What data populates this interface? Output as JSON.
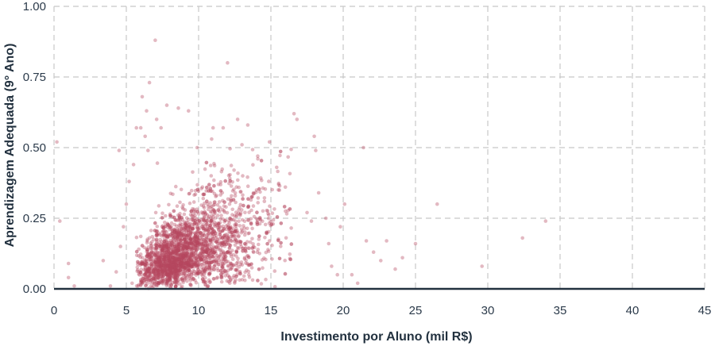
{
  "chart_data": {
    "type": "scatter",
    "title": "",
    "xlabel": "Investimento por Aluno (mil R$)",
    "ylabel": "Aprendizagem Adequada (9° Ano)",
    "xlim": [
      0,
      45
    ],
    "ylim": [
      0,
      1
    ],
    "x_ticks": [
      "0",
      "5",
      "10",
      "15",
      "20",
      "25",
      "30",
      "35",
      "40",
      "45"
    ],
    "y_ticks": [
      "0.00",
      "0.25",
      "0.50",
      "0.75",
      "1.00"
    ],
    "grid": true,
    "point_color": "#b5485f",
    "baseline_color": "#22313f",
    "points": [
      [
        0.2,
        0.52
      ],
      [
        0.4,
        0.24
      ],
      [
        1.0,
        0.09
      ],
      [
        1.0,
        0.04
      ],
      [
        1.4,
        0.01
      ],
      [
        3.4,
        0.1
      ],
      [
        3.9,
        0.01
      ],
      [
        4.3,
        0.06
      ],
      [
        4.5,
        0.49
      ],
      [
        4.6,
        0.15
      ],
      [
        4.8,
        0.22
      ],
      [
        5.0,
        0.3
      ],
      [
        5.2,
        0.38
      ],
      [
        5.4,
        0.02
      ],
      [
        5.5,
        0.44
      ],
      [
        5.7,
        0.57
      ],
      [
        6.0,
        0.57
      ],
      [
        6.1,
        0.68
      ],
      [
        6.3,
        0.54
      ],
      [
        6.4,
        0.63
      ],
      [
        6.5,
        0.49
      ],
      [
        6.6,
        0.73
      ],
      [
        7.0,
        0.88
      ],
      [
        7.1,
        0.6
      ],
      [
        7.4,
        0.57
      ],
      [
        7.8,
        0.65
      ],
      [
        8.6,
        0.64
      ],
      [
        9.3,
        0.63
      ],
      [
        9.9,
        0.5
      ],
      [
        10.9,
        0.53
      ],
      [
        11.0,
        0.57
      ],
      [
        11.7,
        0.57
      ],
      [
        12.0,
        0.8
      ],
      [
        12.7,
        0.6
      ],
      [
        13.0,
        0.51
      ],
      [
        13.4,
        0.58
      ],
      [
        14.1,
        0.46
      ],
      [
        14.9,
        0.52
      ],
      [
        15.4,
        0.43
      ],
      [
        16.0,
        0.36
      ],
      [
        16.6,
        0.62
      ],
      [
        16.8,
        0.6
      ],
      [
        17.5,
        0.27
      ],
      [
        17.8,
        0.24
      ],
      [
        18.0,
        0.54
      ],
      [
        18.1,
        0.49
      ],
      [
        18.3,
        0.34
      ],
      [
        18.8,
        0.25
      ],
      [
        19.0,
        0.16
      ],
      [
        19.2,
        0.08
      ],
      [
        19.6,
        0.05
      ],
      [
        19.8,
        0.22
      ],
      [
        20.1,
        0.3
      ],
      [
        20.6,
        0.05
      ],
      [
        21.0,
        0.02
      ],
      [
        21.4,
        0.5
      ],
      [
        21.6,
        0.17
      ],
      [
        22.1,
        0.13
      ],
      [
        22.6,
        0.1
      ],
      [
        23.0,
        0.17
      ],
      [
        23.6,
        0.07
      ],
      [
        24.1,
        0.11
      ],
      [
        25.0,
        0.16
      ],
      [
        26.5,
        0.3
      ],
      [
        29.6,
        0.08
      ],
      [
        32.4,
        0.18
      ],
      [
        34.0,
        0.24
      ]
    ]
  }
}
